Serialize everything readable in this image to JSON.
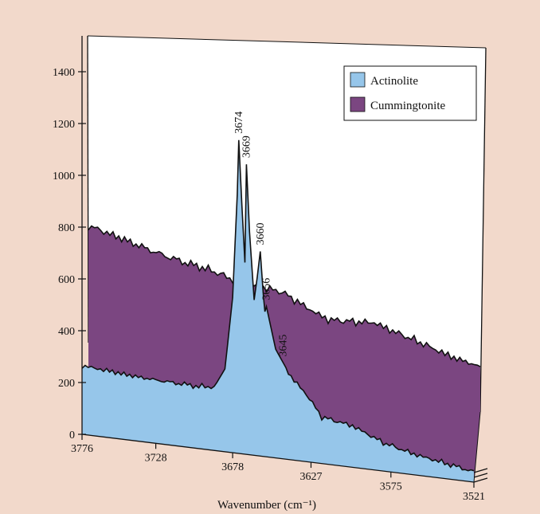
{
  "colors": {
    "frame": "#f2d9cb",
    "wall": "#ffffff",
    "actinolite": "#96c6ea",
    "cummingtonite": "#7b4681",
    "line": "#111111"
  },
  "chart_data": {
    "type": "area",
    "xlabel": "Wavenumber (cm⁻¹)",
    "ylabel": "",
    "xlim": [
      3776,
      3521
    ],
    "ylim": [
      0,
      1400
    ],
    "x_ticks": [
      "3776",
      "3728",
      "3678",
      "3627",
      "3575",
      "3521"
    ],
    "y_ticks": [
      "0",
      "200",
      "400",
      "600",
      "800",
      "1000",
      "1200",
      "1400"
    ],
    "grid": false,
    "legend_position": "top-right",
    "series": [
      {
        "name": "Actinolite",
        "x": [
          3776,
          3760,
          3745,
          3730,
          3715,
          3700,
          3690,
          3683,
          3678,
          3675,
          3674,
          3672,
          3670,
          3669,
          3667,
          3664,
          3662,
          3660,
          3658,
          3657,
          3656,
          3653,
          3650,
          3645,
          3640,
          3630,
          3620,
          3600,
          3580,
          3560,
          3540,
          3521
        ],
        "y": [
          265,
          258,
          250,
          245,
          242,
          240,
          245,
          320,
          600,
          1000,
          1210,
          960,
          740,
          1120,
          860,
          600,
          690,
          790,
          620,
          560,
          580,
          500,
          420,
          370,
          320,
          260,
          180,
          160,
          110,
          80,
          60,
          40
        ]
      },
      {
        "name": "Cummingtonite",
        "x": [
          3776,
          3760,
          3745,
          3730,
          3715,
          3700,
          3690,
          3680,
          3650,
          3640,
          3630,
          3620,
          3600,
          3590,
          3580,
          3560,
          3540,
          3521
        ],
        "y": [
          535,
          510,
          485,
          460,
          440,
          425,
          410,
          390,
          370,
          340,
          310,
          285,
          290,
          295,
          275,
          240,
          200,
          175
        ]
      }
    ],
    "annotations": [
      "3674",
      "3669",
      "3660",
      "3656",
      "3645"
    ]
  }
}
